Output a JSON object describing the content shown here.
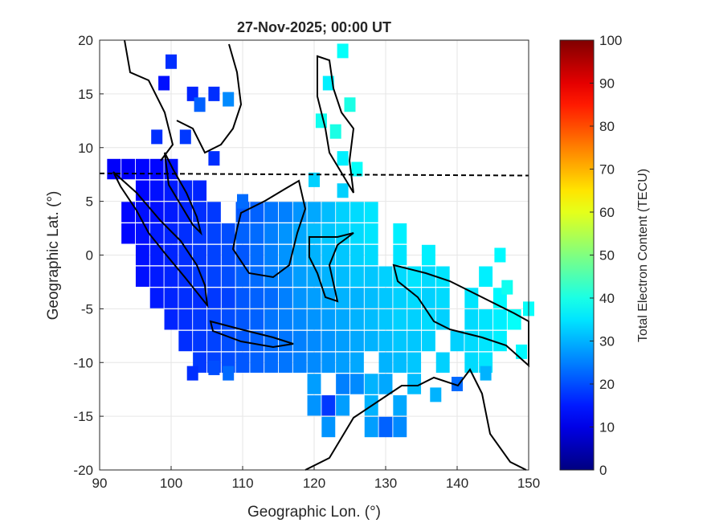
{
  "chart_data": {
    "type": "heatmap",
    "title": "27-Nov-2025; 00:00 UT",
    "xlabel": "Geographic Lon. (°)",
    "ylabel": "Geographic Lat. (°)",
    "xlim": [
      90,
      150
    ],
    "ylim": [
      -20,
      20
    ],
    "xticks": [
      "90",
      "100",
      "110",
      "120",
      "130",
      "140",
      "150"
    ],
    "yticks": [
      "20",
      "15",
      "10",
      "5",
      "0",
      "-5",
      "-10",
      "-15",
      "-20"
    ],
    "colorbar": {
      "label": "Total Electron Content (TECU)",
      "range": [
        0,
        100
      ],
      "colormap": "jet",
      "ticks": [
        "0",
        "10",
        "20",
        "30",
        "40",
        "50",
        "60",
        "70",
        "80",
        "90",
        "100"
      ]
    },
    "grid": true,
    "magnetic_equator_lat": 7.6,
    "rows": [
      {
        "lat": 8,
        "lon0": 92,
        "step": 2,
        "values": [
          12,
          12,
          13,
          13,
          14
        ]
      },
      {
        "lat": 6,
        "lon0": 96,
        "step": 2,
        "values": [
          13,
          14,
          15,
          16,
          16
        ]
      },
      {
        "lat": 4,
        "lon0": 94,
        "step": 2,
        "values": [
          13,
          14,
          14,
          15,
          16,
          17,
          18,
          null,
          21,
          22,
          24,
          25,
          27,
          29,
          31,
          33,
          34,
          35
        ]
      },
      {
        "lat": 2,
        "lon0": 94,
        "step": 2,
        "values": [
          13,
          14,
          15,
          16,
          17,
          18,
          19,
          20,
          22,
          23,
          25,
          27,
          29,
          31,
          32,
          33,
          34,
          35,
          null,
          36
        ]
      },
      {
        "lat": 0,
        "lon0": 96,
        "step": 2,
        "values": [
          14,
          15,
          16,
          17,
          18,
          19,
          20,
          21,
          23,
          25,
          27,
          29,
          30,
          31,
          32,
          33,
          34,
          null,
          35,
          null,
          36
        ]
      },
      {
        "lat": -2,
        "lon0": 96,
        "step": 2,
        "values": [
          14,
          15,
          16,
          17,
          18,
          19,
          20,
          22,
          23,
          25,
          26,
          28,
          29,
          30,
          31,
          32,
          32,
          33,
          34,
          35,
          34,
          35,
          null,
          null,
          36
        ]
      },
      {
        "lat": -4,
        "lon0": 98,
        "step": 2,
        "values": [
          15,
          16,
          17,
          17,
          18,
          19,
          21,
          22,
          23,
          25,
          27,
          28,
          29,
          30,
          30,
          31,
          32,
          33,
          34,
          33,
          34,
          null,
          35,
          null,
          37
        ]
      },
      {
        "lat": -6,
        "lon0": 100,
        "step": 2,
        "values": [
          16,
          17,
          18,
          19,
          20,
          21,
          22,
          24,
          25,
          26,
          27,
          28,
          29,
          30,
          31,
          32,
          33,
          33,
          34,
          33,
          null,
          34,
          35,
          36,
          38
        ]
      },
      {
        "lat": -8,
        "lon0": 102,
        "step": 2,
        "values": [
          17,
          18,
          19,
          20,
          21,
          22,
          23,
          24,
          25,
          26,
          27,
          28,
          29,
          30,
          31,
          32,
          32,
          33,
          null,
          33,
          34,
          35,
          36
        ]
      },
      {
        "lat": -10,
        "lon0": 104,
        "step": 2,
        "values": [
          18,
          19,
          20,
          21,
          22,
          23,
          24,
          25,
          26,
          27,
          28,
          29,
          null,
          30,
          31,
          32,
          null,
          33,
          null,
          34,
          35
        ]
      },
      {
        "lat": -12,
        "lon0": 120,
        "step": 2,
        "values": [
          28,
          null,
          25,
          26,
          30,
          29,
          null,
          31
        ]
      },
      {
        "lat": -14,
        "lon0": 120,
        "step": 2,
        "values": [
          27,
          18,
          28,
          null,
          30,
          null,
          29
        ]
      },
      {
        "lat": -16,
        "lon0": 122,
        "step": 2,
        "values": [
          27,
          null,
          null,
          28,
          22,
          26
        ]
      }
    ],
    "points": [
      [
        100,
        18,
        17
      ],
      [
        99,
        16,
        14
      ],
      [
        103,
        15,
        16
      ],
      [
        106,
        15,
        17
      ],
      [
        108,
        14.5,
        26
      ],
      [
        104,
        14,
        22
      ],
      [
        98,
        11,
        17
      ],
      [
        102,
        11,
        18
      ],
      [
        106,
        9,
        17
      ],
      [
        124,
        19,
        38
      ],
      [
        122,
        16,
        36
      ],
      [
        125,
        14,
        40
      ],
      [
        121,
        12.5,
        39
      ],
      [
        123,
        11.5,
        40
      ],
      [
        124,
        9,
        36
      ],
      [
        126,
        8,
        38
      ],
      [
        103,
        -11,
        17
      ],
      [
        106,
        -10.5,
        20
      ],
      [
        108,
        -11,
        23
      ],
      [
        124,
        6,
        33
      ],
      [
        120,
        7,
        33
      ],
      [
        110,
        5,
        23
      ],
      [
        146,
        0,
        37
      ],
      [
        147,
        -3,
        39
      ],
      [
        150,
        -5,
        38
      ],
      [
        149,
        -9,
        37
      ],
      [
        144,
        -11,
        30
      ],
      [
        140,
        -12,
        23
      ],
      [
        137,
        -13,
        30
      ]
    ]
  }
}
